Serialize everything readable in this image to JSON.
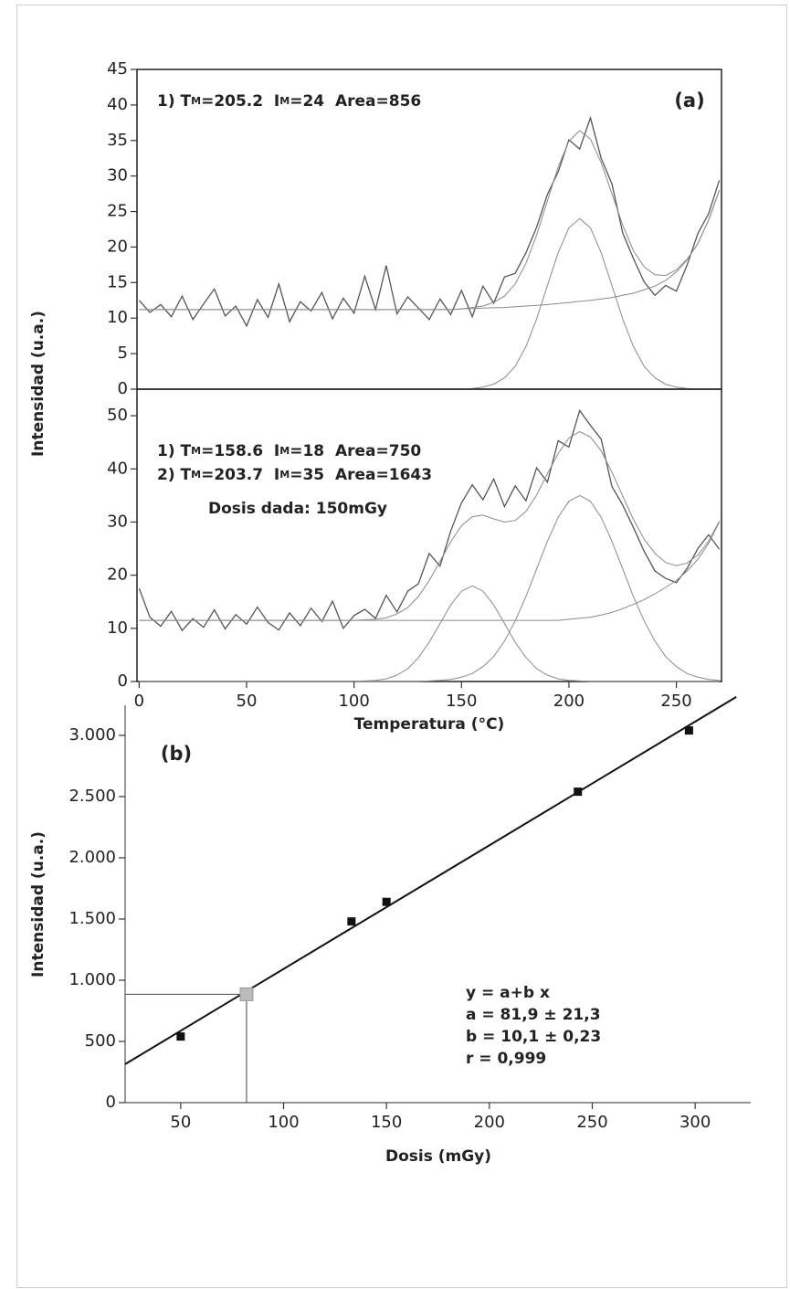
{
  "chart_data": [
    {
      "type": "line",
      "annotations": [
        [
          "1) T",
          "M",
          "=205.2  I",
          "M",
          "=24  Area=856"
        ]
      ],
      "panel_label": "(a)",
      "ylabel": "Intensidad (u.a.)",
      "xlim": [
        -1,
        271
      ],
      "ylim": [
        0,
        45
      ],
      "yticks": [
        0,
        5,
        10,
        15,
        20,
        25,
        30,
        35,
        40,
        45
      ],
      "x": [
        0,
        5,
        10,
        15,
        20,
        25,
        30,
        35,
        40,
        45,
        50,
        55,
        60,
        65,
        70,
        75,
        80,
        85,
        90,
        95,
        100,
        105,
        110,
        115,
        120,
        125,
        130,
        135,
        140,
        145,
        150,
        155,
        160,
        165,
        170,
        175,
        180,
        185,
        190,
        195,
        200,
        205,
        210,
        215,
        220,
        225,
        230,
        235,
        240,
        245,
        250,
        255,
        260,
        265,
        270
      ],
      "series": [
        {
          "color": "#555555",
          "values": [
            12.5,
            10.8,
            11.9,
            10.2,
            13.1,
            9.8,
            12.0,
            14.1,
            10.3,
            11.7,
            8.9,
            12.6,
            10.1,
            14.8,
            9.5,
            12.3,
            11.0,
            13.6,
            9.9,
            12.8,
            10.7,
            15.9,
            11.2,
            17.4,
            10.6,
            13.0,
            11.4,
            9.8,
            12.7,
            10.5,
            13.9,
            10.2,
            14.5,
            12.1,
            15.8,
            16.3,
            19.2,
            22.8,
            27.4,
            30.6,
            35.1,
            33.8,
            38.2,
            32.5,
            28.9,
            22.0,
            18.4,
            15.1,
            13.2,
            14.6,
            13.8,
            17.5,
            21.9,
            24.7,
            29.4
          ]
        },
        {
          "color": "#8a8a8a",
          "values": [
            0,
            0,
            0,
            0,
            0,
            0,
            0,
            0,
            0,
            0,
            0,
            0,
            0,
            0,
            0,
            0,
            0,
            0,
            0,
            0,
            0,
            0,
            0,
            0,
            0,
            0,
            0,
            0,
            0,
            0,
            0,
            0.1,
            0.3,
            0.7,
            1.6,
            3.2,
            6.0,
            9.9,
            14.6,
            19.2,
            22.7,
            24,
            22.7,
            19.2,
            14.6,
            9.9,
            6.0,
            3.2,
            1.6,
            0.7,
            0.3,
            0.1,
            0,
            0,
            0
          ]
        },
        {
          "color": "#8a8a8a",
          "values": [
            11.2,
            11.2,
            11.2,
            11.2,
            11.2,
            11.2,
            11.2,
            11.2,
            11.2,
            11.2,
            11.2,
            11.2,
            11.2,
            11.2,
            11.2,
            11.2,
            11.2,
            11.2,
            11.2,
            11.2,
            11.2,
            11.2,
            11.2,
            11.2,
            11.2,
            11.2,
            11.2,
            11.2,
            11.2,
            11.2,
            11.3,
            11.35,
            11.4,
            11.45,
            11.5,
            11.6,
            11.7,
            11.8,
            11.9,
            12.05,
            12.2,
            12.35,
            12.5,
            12.7,
            12.9,
            13.2,
            13.5,
            14.0,
            14.5,
            15.3,
            16.5,
            18.2,
            20.5,
            23.8,
            28
          ]
        },
        {
          "color": "#8a8a8a",
          "values": [
            11.2,
            11.2,
            11.2,
            11.2,
            11.2,
            11.2,
            11.2,
            11.2,
            11.2,
            11.2,
            11.2,
            11.2,
            11.2,
            11.2,
            11.2,
            11.2,
            11.2,
            11.2,
            11.2,
            11.2,
            11.2,
            11.2,
            11.2,
            11.2,
            11.2,
            11.2,
            11.2,
            11.2,
            11.2,
            11.2,
            11.3,
            11.5,
            11.7,
            12.2,
            13.1,
            14.8,
            17.7,
            21.7,
            26.5,
            31.3,
            34.9,
            36.4,
            35.2,
            31.9,
            27.5,
            23.1,
            19.5,
            17.2,
            16.1,
            16.0,
            16.8,
            18.3,
            20.5,
            23.8,
            28
          ]
        }
      ]
    },
    {
      "type": "line",
      "annotations": [
        [
          "1) T",
          "M",
          "=158.6  I",
          "M",
          "=18  Area=750"
        ],
        [
          "2) T",
          "M",
          "=203.7  I",
          "M",
          "=35  Area=1643"
        ],
        [
          "Dosis dada: 150mGy"
        ]
      ],
      "xlabel": "Temperatura (°C)",
      "xlim": [
        -1,
        271
      ],
      "ylim": [
        0,
        55
      ],
      "xticks": [
        0,
        50,
        100,
        150,
        200,
        250
      ],
      "yticks": [
        0,
        10,
        20,
        30,
        40,
        50
      ],
      "x": [
        0,
        5,
        10,
        15,
        20,
        25,
        30,
        35,
        40,
        45,
        50,
        55,
        60,
        65,
        70,
        75,
        80,
        85,
        90,
        95,
        100,
        105,
        110,
        115,
        120,
        125,
        130,
        135,
        140,
        145,
        150,
        155,
        160,
        165,
        170,
        175,
        180,
        185,
        190,
        195,
        200,
        205,
        210,
        215,
        220,
        225,
        230,
        235,
        240,
        245,
        250,
        255,
        260,
        265,
        270
      ],
      "series": [
        {
          "color": "#555555",
          "values": [
            17.5,
            12.1,
            10.4,
            13.2,
            9.6,
            11.8,
            10.2,
            13.5,
            9.9,
            12.6,
            10.8,
            14.0,
            11.1,
            9.7,
            12.9,
            10.5,
            13.8,
            11.3,
            15.1,
            10.0,
            12.4,
            13.6,
            11.9,
            16.2,
            13.1,
            17.0,
            18.4,
            24.1,
            21.7,
            28.3,
            33.6,
            37.0,
            34.2,
            38.1,
            32.9,
            36.8,
            34.0,
            40.2,
            37.5,
            45.3,
            44.1,
            51.0,
            48.2,
            45.6,
            36.7,
            33.2,
            29.0,
            24.5,
            20.8,
            19.4,
            18.6,
            21.3,
            25.0,
            27.6,
            24.9
          ]
        },
        {
          "color": "#8a8a8a",
          "values": [
            0,
            0,
            0,
            0,
            0,
            0,
            0,
            0,
            0,
            0,
            0,
            0,
            0,
            0,
            0,
            0,
            0,
            0,
            0,
            0,
            0,
            0.1,
            0.2,
            0.5,
            1.2,
            2.4,
            4.5,
            7.4,
            10.9,
            14.4,
            17.0,
            18,
            17.0,
            14.4,
            10.9,
            7.4,
            4.5,
            2.4,
            1.2,
            0.5,
            0.2,
            0.1,
            0,
            0,
            0,
            0,
            0,
            0,
            0,
            0,
            0,
            0,
            0,
            0,
            0
          ]
        },
        {
          "color": "#8a8a8a",
          "values": [
            0,
            0,
            0,
            0,
            0,
            0,
            0,
            0,
            0,
            0,
            0,
            0,
            0,
            0,
            0,
            0,
            0,
            0,
            0,
            0,
            0,
            0,
            0,
            0,
            0,
            0,
            0,
            0.1,
            0.2,
            0.4,
            0.8,
            1.5,
            2.8,
            4.7,
            7.6,
            11.4,
            16.0,
            21.2,
            26.4,
            30.9,
            33.9,
            35,
            33.9,
            30.9,
            26.4,
            21.2,
            16.0,
            11.4,
            7.6,
            4.7,
            2.8,
            1.5,
            0.8,
            0.4,
            0.2
          ]
        },
        {
          "color": "#8a8a8a",
          "values": [
            11.5,
            11.5,
            11.5,
            11.5,
            11.5,
            11.5,
            11.5,
            11.5,
            11.5,
            11.5,
            11.5,
            11.5,
            11.5,
            11.5,
            11.5,
            11.5,
            11.5,
            11.5,
            11.5,
            11.5,
            11.5,
            11.5,
            11.5,
            11.5,
            11.5,
            11.5,
            11.5,
            11.5,
            11.5,
            11.5,
            11.5,
            11.5,
            11.5,
            11.5,
            11.5,
            11.5,
            11.5,
            11.5,
            11.5,
            11.5,
            11.7,
            11.9,
            12.1,
            12.5,
            13.0,
            13.7,
            14.5,
            15.4,
            16.5,
            17.7,
            19.0,
            20.8,
            23.0,
            26.0,
            30.0
          ]
        },
        {
          "color": "#8a8a8a",
          "values": [
            11.5,
            11.5,
            11.5,
            11.5,
            11.5,
            11.5,
            11.5,
            11.5,
            11.5,
            11.5,
            11.5,
            11.5,
            11.5,
            11.5,
            11.5,
            11.5,
            11.5,
            11.5,
            11.5,
            11.5,
            11.5,
            11.6,
            11.7,
            12.0,
            12.7,
            13.9,
            16.0,
            19.0,
            22.6,
            26.3,
            29.3,
            31.0,
            31.3,
            30.6,
            30.0,
            30.3,
            32.0,
            35.1,
            39.1,
            42.9,
            45.8,
            47.0,
            46.0,
            43.4,
            39.4,
            34.9,
            30.5,
            26.8,
            24.1,
            22.4,
            21.8,
            22.3,
            23.8,
            26.4,
            30.2
          ]
        }
      ]
    },
    {
      "type": "scatter",
      "panel_label": "(b)",
      "xlabel": "Dosis (mGy)",
      "ylabel": "Intensidad (u.a.)",
      "annotations": [
        "y = a+b x",
        "a = 81,9 ± 21,3",
        "b = 10,1 ± 0,23",
        "r = 0,999"
      ],
      "xlim": [
        23,
        327
      ],
      "ylim": [
        0,
        3246
      ],
      "xticks": [
        50,
        100,
        150,
        200,
        250,
        300
      ],
      "yticks": [
        0,
        500,
        {
          "value": 1000,
          "label": "1.000"
        },
        {
          "value": 1500,
          "label": "1.500"
        },
        {
          "value": 2000,
          "label": "2.000"
        },
        {
          "value": 2500,
          "label": "2.500"
        },
        {
          "value": 3000,
          "label": "3.000"
        }
      ],
      "x": [
        50,
        133,
        150,
        243,
        297
      ],
      "values": [
        540,
        1480,
        1640,
        2540,
        3040
      ],
      "color": "#111111",
      "highlight": {
        "x": 82,
        "value": 885,
        "color": "#bbbbbb"
      },
      "fit_line": {
        "x": [
          23,
          320
        ],
        "values": [
          314,
          3314
        ],
        "color": "#111111"
      }
    }
  ]
}
